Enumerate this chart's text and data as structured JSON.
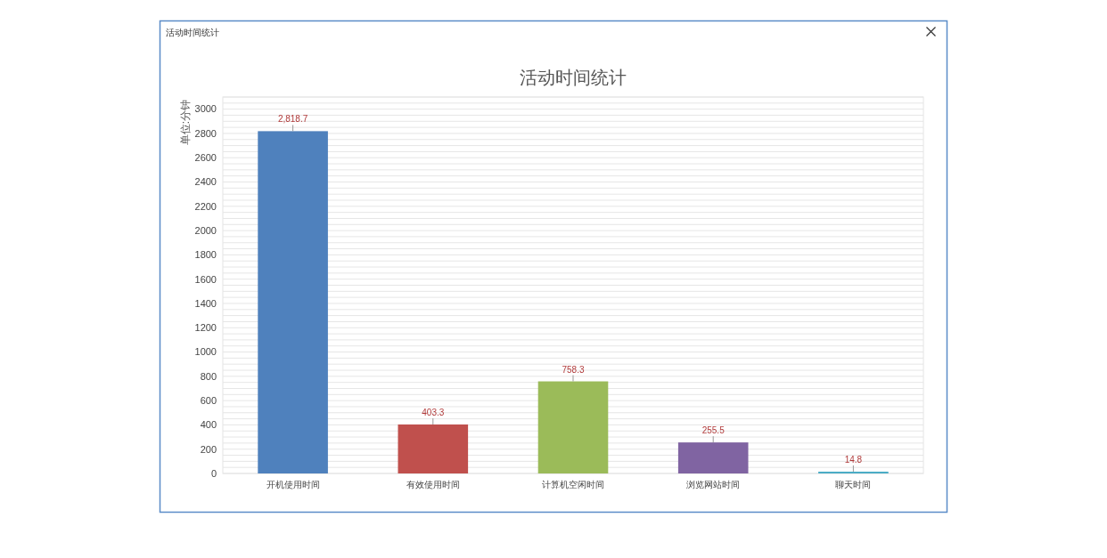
{
  "chart_data": {
    "type": "bar",
    "title": "活动时间统计",
    "ylabel": "单位:分钟",
    "categories": [
      "开机使用时间",
      "有效使用时间",
      "计算机空闲时间",
      "浏览网站时间",
      "聊天时间"
    ],
    "values": [
      2818.7,
      403.3,
      758.3,
      255.5,
      14.8
    ],
    "colors": [
      "#4f81bd",
      "#c0504d",
      "#9bbb59",
      "#8064a2",
      "#4bacc6"
    ],
    "value_labels": [
      "2,818.7",
      "403.3",
      "758.3",
      "255.5",
      "14.8"
    ],
    "ylim": [
      0,
      3100
    ],
    "yticks": [
      0,
      {
        "value": 50,
        "label": null
      },
      {
        "value": 100,
        "label": null
      },
      {
        "value": 150,
        "label": null
      },
      200,
      {
        "value": 250,
        "label": null
      },
      {
        "value": 300,
        "label": null
      },
      {
        "value": 350,
        "label": null
      },
      400,
      {
        "value": 450,
        "label": null
      },
      {
        "value": 500,
        "label": null
      },
      {
        "value": 550,
        "label": null
      },
      600,
      {
        "value": 650,
        "label": null
      },
      {
        "value": 700,
        "label": null
      },
      {
        "value": 750,
        "label": null
      },
      800,
      {
        "value": 850,
        "label": null
      },
      {
        "value": 900,
        "label": null
      },
      {
        "value": 950,
        "label": null
      },
      1000,
      {
        "value": 1050,
        "label": null
      },
      {
        "value": 1100,
        "label": null
      },
      {
        "value": 1150,
        "label": null
      },
      1200,
      {
        "value": 1250,
        "label": null
      },
      {
        "value": 1300,
        "label": null
      },
      {
        "value": 1350,
        "label": null
      },
      1400,
      {
        "value": 1450,
        "label": null
      },
      {
        "value": 1500,
        "label": null
      },
      {
        "value": 1550,
        "label": null
      },
      1600,
      {
        "value": 1650,
        "label": null
      },
      {
        "value": 1700,
        "label": null
      },
      {
        "value": 1750,
        "label": null
      },
      1800,
      {
        "value": 1850,
        "label": null
      },
      {
        "value": 1900,
        "label": null
      },
      {
        "value": 1950,
        "label": null
      },
      2000,
      {
        "value": 2050,
        "label": null
      },
      {
        "value": 2100,
        "label": null
      },
      {
        "value": 2150,
        "label": null
      },
      2200,
      {
        "value": 2250,
        "label": null
      },
      {
        "value": 2300,
        "label": null
      },
      {
        "value": 2350,
        "label": null
      },
      2400,
      {
        "value": 2450,
        "label": null
      },
      {
        "value": 2500,
        "label": null
      },
      {
        "value": 2550,
        "label": null
      },
      2600,
      {
        "value": 2650,
        "label": null
      },
      {
        "value": 2700,
        "label": null
      },
      {
        "value": 2750,
        "label": null
      },
      2800,
      {
        "value": 2850,
        "label": null
      },
      {
        "value": 2900,
        "label": null
      },
      {
        "value": 2950,
        "label": null
      },
      3000,
      {
        "value": 3050,
        "label": null
      },
      {
        "value": 3100,
        "label": null
      }
    ],
    "grid": "y"
  }
}
